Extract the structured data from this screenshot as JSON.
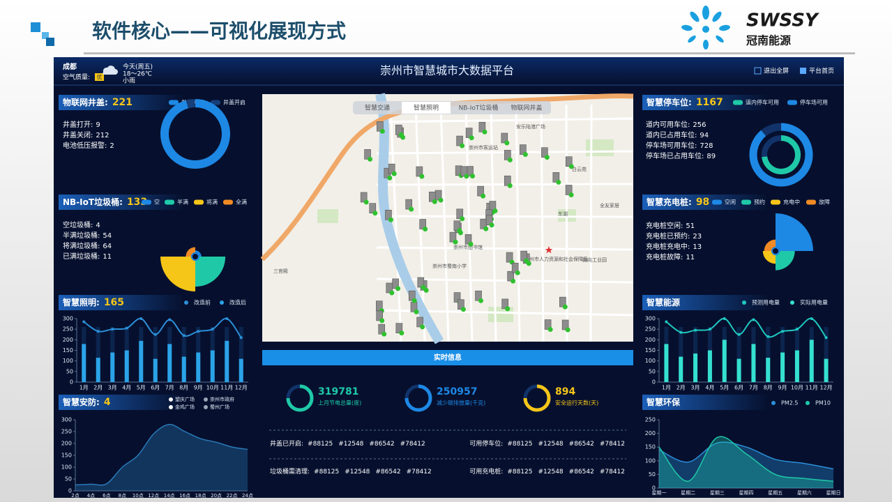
{
  "header": {
    "title": "软件核心——可视化展现方式",
    "brand": "SWSSY",
    "brand_cn": "冠南能源"
  },
  "dashboard": {
    "title": "崇州市智慧城市大数据平台",
    "weather": {
      "city": "成都",
      "air_label": "空气质量:",
      "air_value": "优",
      "day": "今天(周五)",
      "temp": "18～26℃",
      "condition": "小雨"
    },
    "buttons": [
      "退出全屏",
      "平台首页"
    ],
    "manhole": {
      "title": "物联网井盖:",
      "count": 221,
      "legend": [
        {
          "name": "井盖关闭",
          "color": "#1e88e5"
        },
        {
          "name": "井盖开启",
          "color": "#17407a"
        }
      ],
      "stats": [
        {
          "label": "井盖打开:",
          "value": 9
        },
        {
          "label": "井盖关闭:",
          "value": 212
        },
        {
          "label": "电池低压报警:",
          "value": 2
        }
      ],
      "chart": {
        "type": "donut"
      }
    },
    "trash": {
      "title": "NB-IoT垃圾桶:",
      "count": 133,
      "legend": [
        {
          "name": "空",
          "color": "#1e88e5"
        },
        {
          "name": "半满",
          "color": "#1fc9a8"
        },
        {
          "name": "将满",
          "color": "#f5c518"
        },
        {
          "name": "全满",
          "color": "#f08a24"
        }
      ],
      "stats": [
        {
          "label": "空垃圾桶:",
          "value": 4
        },
        {
          "label": "半满垃圾桶:",
          "value": 54
        },
        {
          "label": "将满垃圾桶:",
          "value": 64
        },
        {
          "label": "已满垃圾桶:",
          "value": 11
        }
      ],
      "chart": {
        "type": "rose"
      }
    },
    "lighting": {
      "title": "智慧照明:",
      "count": 165,
      "chart": {
        "type": "bar-line",
        "categories": [
          "1月",
          "2月",
          "3月",
          "4月",
          "5月",
          "6月",
          "7月",
          "8月",
          "9月",
          "10月",
          "11月",
          "12月"
        ],
        "series": [
          {
            "name": "改造前",
            "type": "line",
            "color": "#2b8fd9",
            "values": [
              285,
              240,
              250,
              255,
              300,
              225,
              295,
              220,
              240,
              250,
              300,
              210
            ]
          },
          {
            "name": "改造后",
            "type": "bar",
            "color": "#2ba3e8",
            "values": [
              180,
              115,
              140,
              150,
              195,
              110,
              180,
              120,
              140,
              150,
              195,
              110
            ]
          }
        ],
        "ylim": [
          0,
          300
        ],
        "yticks": [
          0,
          50,
          100,
          150,
          200,
          250,
          300
        ]
      }
    },
    "security": {
      "title": "智慧安防:",
      "count": 4,
      "chart": {
        "type": "area",
        "legend": [
          {
            "name": "望庆广场",
            "color": "#ffffff"
          },
          {
            "name": "崇州市政府",
            "color": "#9aa3b5"
          },
          {
            "name": "金鸡广场",
            "color": "#ffffff"
          },
          {
            "name": "蜀州广场",
            "color": "#9aa3b5"
          }
        ],
        "categories": [
          "2点",
          "4点",
          "6点",
          "8点",
          "10点",
          "12点",
          "14点",
          "16点",
          "18点",
          "20点",
          "22点",
          "24点"
        ],
        "values": [
          25,
          28,
          30,
          100,
          150,
          240,
          280,
          250,
          220,
          205,
          185,
          175
        ],
        "color": "#2a7ab8",
        "ylim": [
          0,
          300
        ],
        "yticks": [
          0,
          50,
          100,
          150,
          200,
          250,
          300
        ]
      }
    },
    "parking": {
      "title": "智慧停车位:",
      "count": 1167,
      "legend": [
        {
          "name": "道内停车可用",
          "color": "#1fc9a8"
        },
        {
          "name": "停车场可用",
          "color": "#1e88e5"
        }
      ],
      "stats": [
        {
          "label": "道内可用车位:",
          "value": 256
        },
        {
          "label": "道内已占用车位:",
          "value": 94
        },
        {
          "label": "停车场可用车位:",
          "value": 728
        },
        {
          "label": "停车场已占用车位:",
          "value": 89
        }
      ],
      "chart": {
        "type": "rings"
      }
    },
    "charging": {
      "title": "智慧充电桩:",
      "count": 98,
      "legend": [
        {
          "name": "空闲",
          "color": "#1e88e5"
        },
        {
          "name": "预约",
          "color": "#1fc9a8"
        },
        {
          "name": "充电中",
          "color": "#f5c518"
        },
        {
          "name": "故障",
          "color": "#f08a24"
        }
      ],
      "stats": [
        {
          "label": "充电桩空闲:",
          "value": 51
        },
        {
          "label": "充电桩已预约:",
          "value": 23
        },
        {
          "label": "充电桩充电中:",
          "value": 13
        },
        {
          "label": "充电桩故障:",
          "value": 11
        }
      ],
      "chart": {
        "type": "rose"
      }
    },
    "energy": {
      "title": "智慧能源",
      "chart": {
        "type": "bar-line",
        "categories": [
          "1月",
          "2月",
          "3月",
          "4月",
          "5月",
          "6月",
          "7月",
          "8月",
          "9月",
          "10月",
          "11月",
          "12月"
        ],
        "series": [
          {
            "name": "预测用电量",
            "type": "line",
            "color": "#1fc9c0",
            "values": [
              285,
              235,
              245,
              250,
              300,
              225,
              295,
              215,
              240,
              250,
              300,
              210
            ]
          },
          {
            "name": "实际用电量",
            "type": "bar",
            "color": "#35e0d0",
            "values": [
              180,
              120,
              135,
              150,
              200,
              110,
              180,
              115,
              140,
              150,
              200,
              110
            ]
          }
        ],
        "ylim": [
          0,
          300
        ],
        "yticks": [
          0,
          50,
          100,
          150,
          200,
          250,
          300
        ]
      }
    },
    "environment": {
      "title": "智慧环保",
      "chart": {
        "type": "area",
        "categories": [
          "星期一",
          "星期二",
          "星期三",
          "星期四",
          "星期五",
          "星期六",
          "星期日"
        ],
        "series": [
          {
            "name": "PM2.5",
            "color": "#2b8fd9",
            "values": [
              140,
              95,
              165,
              150,
              105,
              90,
              70
            ]
          },
          {
            "name": "PM10",
            "color": "#1fc9a8",
            "values": [
              150,
              25,
              185,
              125,
              50,
              35,
              25
            ]
          }
        ],
        "ylim": [
          0,
          250
        ],
        "yticks": [
          0,
          50,
          100,
          150,
          200,
          250
        ]
      }
    },
    "map": {
      "tabs": [
        "智慧交通",
        "智慧照明",
        "NB-IoT垃圾桶",
        "物联网井盖"
      ],
      "places": [
        "安乐陆港广场",
        "崇州市图书馆",
        "崇州市蜀南小学",
        "崇州市人力资源和社会保障局",
        "路向工业园",
        "全友家居",
        "东湖",
        "三官殿",
        "崇州市客运站",
        "白云苑"
      ]
    },
    "realtime": {
      "title": "实时信息",
      "gauges": [
        {
          "value": 319781,
          "label": "上月节电总量(度)",
          "color": "#1fc9a8"
        },
        {
          "value": 250957,
          "label": "减少碳排放量(千克)",
          "color": "#1e88e5"
        },
        {
          "value": 894,
          "label": "安全运行天数(天)",
          "color": "#f5c518"
        }
      ],
      "rows": [
        {
          "label": "井盖已开启:",
          "codes": [
            "#88125",
            "#12548",
            "#86542",
            "#78412"
          ]
        },
        {
          "label": "可用停车位:",
          "codes": [
            "#88125",
            "#12548",
            "#86542",
            "#78412"
          ]
        },
        {
          "label": "垃圾桶需清理:",
          "codes": [
            "#88125",
            "#12548",
            "#86542",
            "#78412"
          ]
        },
        {
          "label": "可用充电桩:",
          "codes": [
            "#88125",
            "#12548",
            "#86542",
            "#78412"
          ]
        }
      ]
    }
  }
}
